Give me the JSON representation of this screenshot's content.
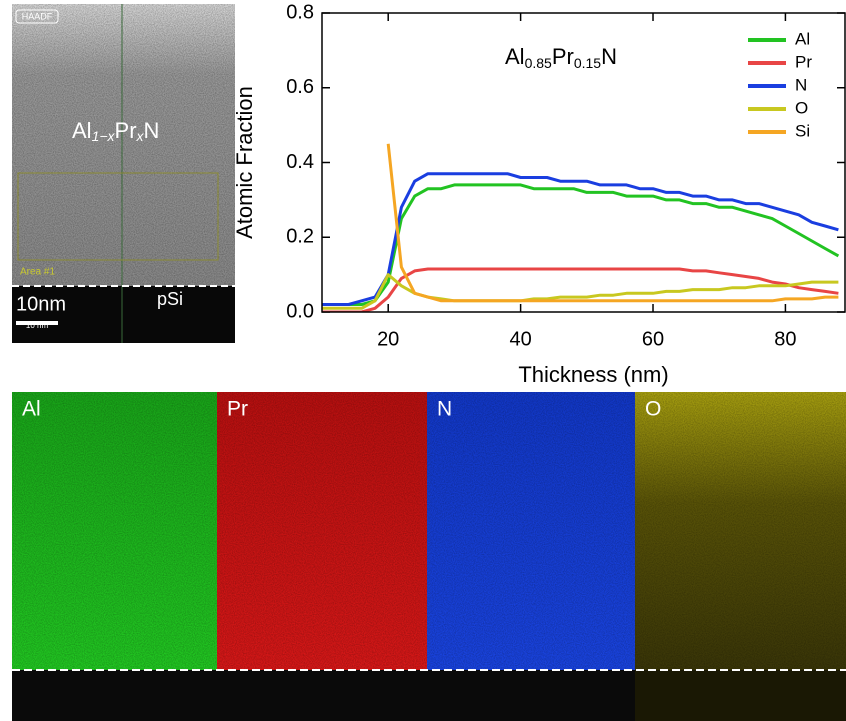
{
  "chart_data": {
    "type": "line",
    "annotation": {
      "parts": [
        "Al",
        "0.85",
        "Pr",
        "0.15",
        "N"
      ]
    },
    "xlabel": "Thickness (nm)",
    "ylabel": "Atomic Fraction",
    "x": [
      10,
      12,
      14,
      16,
      18,
      20,
      22,
      24,
      26,
      28,
      30,
      32,
      34,
      36,
      38,
      40,
      42,
      44,
      46,
      48,
      50,
      52,
      54,
      56,
      58,
      60,
      62,
      64,
      66,
      68,
      70,
      72,
      74,
      76,
      78,
      80,
      82,
      84,
      86,
      88
    ],
    "series": [
      {
        "name": "Al",
        "color": "#22c322",
        "values": [
          0.02,
          0.02,
          0.02,
          0.02,
          0.03,
          0.08,
          0.25,
          0.31,
          0.33,
          0.33,
          0.34,
          0.34,
          0.34,
          0.34,
          0.34,
          0.34,
          0.33,
          0.33,
          0.33,
          0.33,
          0.32,
          0.32,
          0.32,
          0.31,
          0.31,
          0.31,
          0.3,
          0.3,
          0.29,
          0.29,
          0.28,
          0.28,
          0.27,
          0.26,
          0.25,
          0.23,
          0.21,
          0.19,
          0.17,
          0.15
        ]
      },
      {
        "name": "Pr",
        "color": "#e84545",
        "values": [
          0.0,
          0.0,
          0.0,
          0.0,
          0.01,
          0.04,
          0.09,
          0.11,
          0.115,
          0.115,
          0.115,
          0.115,
          0.115,
          0.115,
          0.115,
          0.115,
          0.115,
          0.115,
          0.115,
          0.115,
          0.115,
          0.115,
          0.115,
          0.115,
          0.115,
          0.115,
          0.115,
          0.115,
          0.11,
          0.11,
          0.105,
          0.1,
          0.095,
          0.09,
          0.08,
          0.075,
          0.065,
          0.06,
          0.055,
          0.05
        ]
      },
      {
        "name": "N",
        "color": "#1a3ee0",
        "values": [
          0.02,
          0.02,
          0.02,
          0.03,
          0.04,
          0.1,
          0.28,
          0.35,
          0.37,
          0.37,
          0.37,
          0.37,
          0.37,
          0.37,
          0.37,
          0.36,
          0.36,
          0.36,
          0.35,
          0.35,
          0.35,
          0.34,
          0.34,
          0.34,
          0.33,
          0.33,
          0.32,
          0.32,
          0.31,
          0.31,
          0.3,
          0.3,
          0.29,
          0.29,
          0.28,
          0.27,
          0.26,
          0.24,
          0.23,
          0.22
        ]
      },
      {
        "name": "O",
        "color": "#c8c820",
        "values": [
          0.01,
          0.01,
          0.01,
          0.01,
          0.03,
          0.1,
          0.07,
          0.05,
          0.04,
          0.035,
          0.03,
          0.03,
          0.03,
          0.03,
          0.03,
          0.03,
          0.035,
          0.035,
          0.04,
          0.04,
          0.04,
          0.045,
          0.045,
          0.05,
          0.05,
          0.05,
          0.055,
          0.055,
          0.06,
          0.06,
          0.06,
          0.065,
          0.065,
          0.07,
          0.07,
          0.07,
          0.075,
          0.08,
          0.08,
          0.08
        ]
      },
      {
        "name": "Si",
        "color": "#f5a623",
        "values": [
          null,
          null,
          null,
          null,
          null,
          0.45,
          0.12,
          0.05,
          0.04,
          0.03,
          0.03,
          0.03,
          0.03,
          0.03,
          0.03,
          0.03,
          0.03,
          0.03,
          0.03,
          0.03,
          0.03,
          0.03,
          0.03,
          0.03,
          0.03,
          0.03,
          0.03,
          0.03,
          0.03,
          0.03,
          0.03,
          0.03,
          0.03,
          0.03,
          0.03,
          0.035,
          0.035,
          0.035,
          0.04,
          0.04
        ]
      }
    ],
    "xlim": [
      10,
      89
    ],
    "xticks": [
      20,
      40,
      60,
      80
    ],
    "ylim": [
      0,
      0.8
    ],
    "yticks": [
      {
        "value": 0,
        "label": "0.0"
      },
      0.2,
      0.4,
      0.6,
      0.8
    ],
    "legend": "top-right"
  },
  "haadf": {
    "badge": "HAADF",
    "film": {
      "parts": [
        "Al",
        "1−x",
        "Pr",
        "x",
        "N"
      ]
    },
    "area": "Area #1",
    "scale": "10nm",
    "scale_small": "10 nm",
    "substrate": "pSi"
  },
  "maps": [
    {
      "label": "Al"
    },
    {
      "label": "Pr"
    },
    {
      "label": "N"
    },
    {
      "label": "O"
    }
  ]
}
